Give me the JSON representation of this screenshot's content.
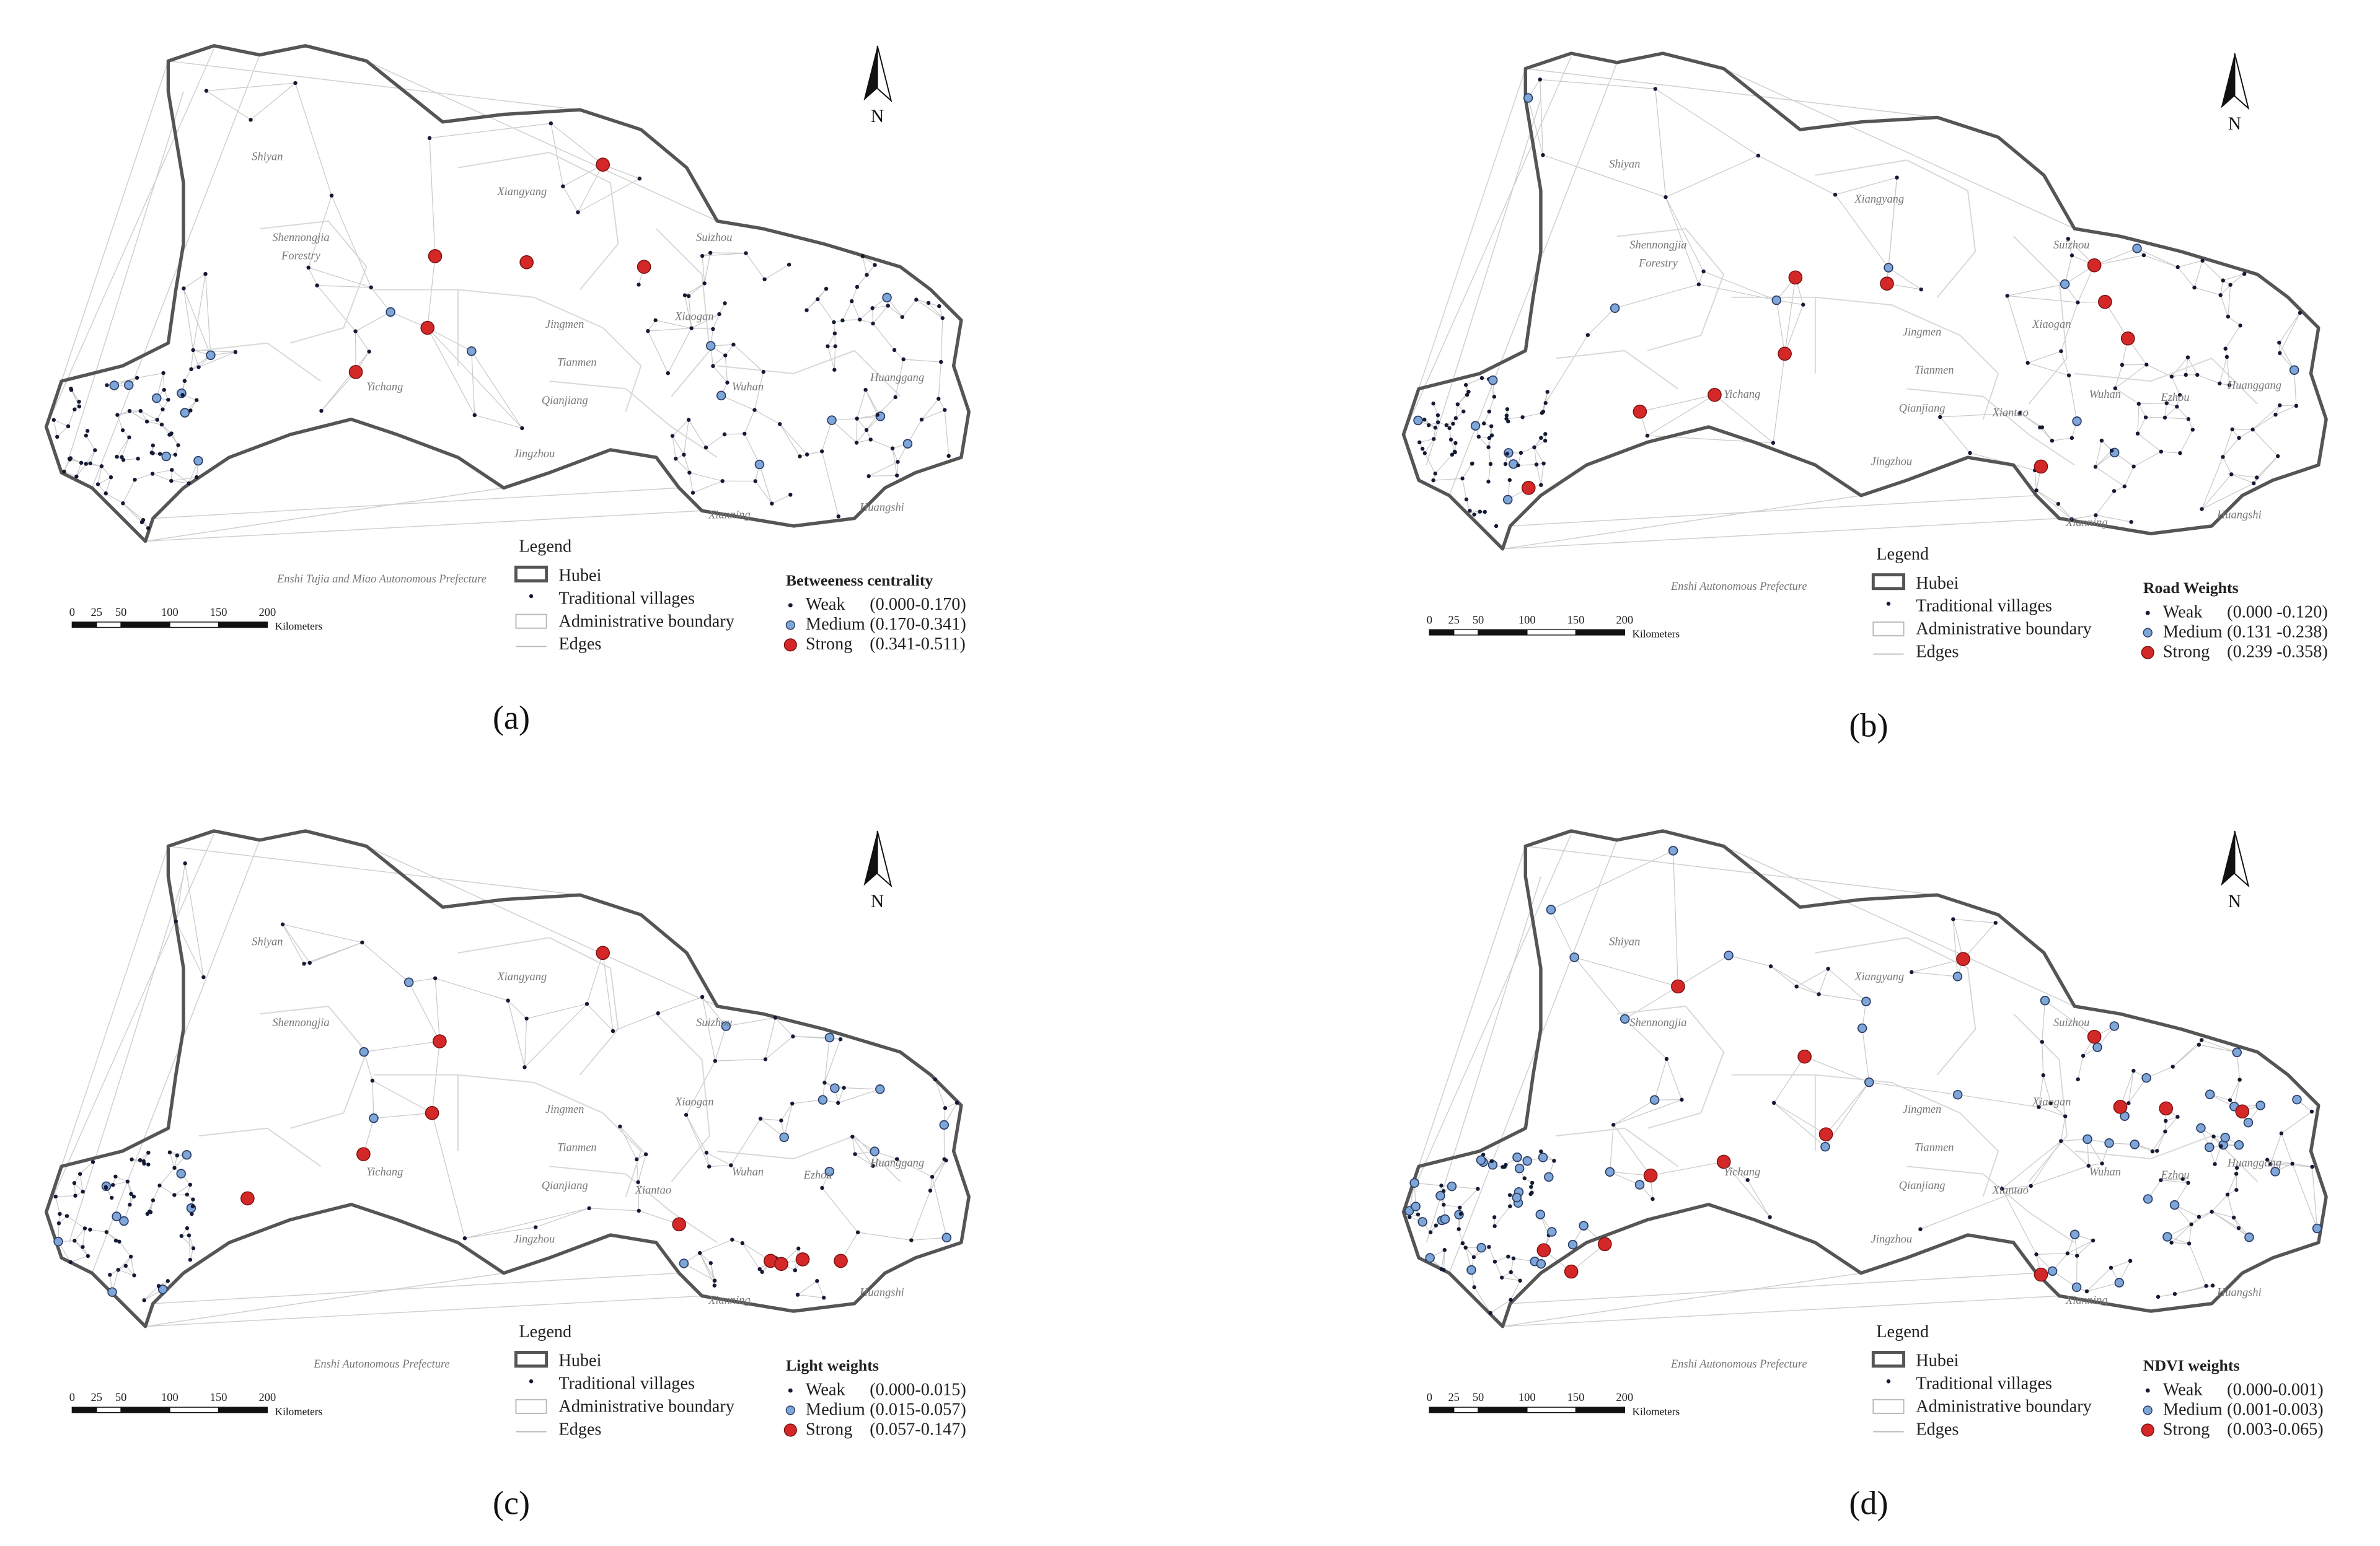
{
  "panels": [
    {
      "caption": "(a)",
      "north": "N",
      "places": [
        "Shiyan",
        "Shennongjia",
        "Forestry",
        "Xiangyang",
        "Suizhou",
        "Jingmen",
        "Tianmen",
        "Qianjiang",
        "Yichang",
        "Xiaogan",
        "Wuhan",
        "Huanggang",
        "Jingzhou",
        "Xianning",
        "Huangshi",
        "Enshi Tujia and Miao Autonomous Prefecture"
      ],
      "legend": {
        "title": "Legend",
        "items": [
          "Hubei",
          "Traditional villages",
          "Administrative boundary",
          "Edges"
        ],
        "class_title": "Betweeness centrality",
        "classes": [
          {
            "name": "Weak",
            "range": "(0.000-0.170)"
          },
          {
            "name": "Medium",
            "range": "(0.170-0.341)"
          },
          {
            "name": "Strong",
            "range": "(0.341-0.511)"
          }
        ]
      },
      "scale": {
        "ticks": [
          0,
          25,
          50,
          100,
          150,
          200
        ],
        "unit": "Kilometers"
      }
    },
    {
      "caption": "(b)",
      "north": "N",
      "places": [
        "Shiyan",
        "Shennongjia",
        "Forestry",
        "Xiangyang",
        "Suizhou",
        "Jingmen",
        "Tianmen",
        "Qianjiang",
        "Yichang",
        "Xiaogan",
        "Wuhan",
        "Huanggang",
        "Jingzhou",
        "Xianning",
        "Huangshi",
        "Enshi Autonomous Prefecture",
        "Xiantao",
        "Ezhou"
      ],
      "legend": {
        "title": "Legend",
        "items": [
          "Hubei",
          "Traditional villages",
          "Administrative boundary",
          "Edges"
        ],
        "class_title": "Road Weights",
        "classes": [
          {
            "name": "Weak",
            "range": "(0.000 -0.120)"
          },
          {
            "name": "Medium",
            "range": "(0.131 -0.238)"
          },
          {
            "name": "Strong",
            "range": "(0.239 -0.358)"
          }
        ]
      },
      "scale": {
        "ticks": [
          0,
          25,
          50,
          100,
          150,
          200
        ],
        "unit": "Kilometers"
      }
    },
    {
      "caption": "(c)",
      "north": "N",
      "places": [
        "Shiyan",
        "Shennongjia",
        "Xiangyang",
        "Suizhou",
        "Jingmen",
        "Tianmen",
        "Qianjiang",
        "Yichang",
        "Xiaogan",
        "Wuhan",
        "Huanggang",
        "Jingzhou",
        "Xianning",
        "Huangshi",
        "Enshi Autonomous Prefecture",
        "Xiantao",
        "Ezhou"
      ],
      "legend": {
        "title": "Legend",
        "items": [
          "Hubei",
          "Traditional villages",
          "Administrative boundary",
          "Edges"
        ],
        "class_title": "Light weights",
        "classes": [
          {
            "name": "Weak",
            "range": "(0.000-0.015)"
          },
          {
            "name": "Medium",
            "range": "(0.015-0.057)"
          },
          {
            "name": "Strong",
            "range": "(0.057-0.147)"
          }
        ]
      },
      "scale": {
        "ticks": [
          0,
          25,
          50,
          100,
          150,
          200
        ],
        "unit": "Kilometers"
      }
    },
    {
      "caption": "(d)",
      "north": "N",
      "places": [
        "Shiyan",
        "Shennongjia",
        "Xiangyang",
        "Suizhou",
        "Jingmen",
        "Tianmen",
        "Qianjiang",
        "Yichang",
        "Xiaogan",
        "Wuhan",
        "Huanggang",
        "Jingzhou",
        "Xianning",
        "Huangshi",
        "Enshi Autonomous Prefecture",
        "Xiantao",
        "Ezhou"
      ],
      "legend": {
        "title": "Legend",
        "items": [
          "Hubei",
          "Traditional villages",
          "Administrative boundary",
          "Edges"
        ],
        "class_title": "NDVI weights",
        "classes": [
          {
            "name": "Weak",
            "range": "(0.000-0.001)"
          },
          {
            "name": "Medium",
            "range": "(0.001-0.003)"
          },
          {
            "name": "Strong",
            "range": "(0.003-0.065)"
          }
        ]
      },
      "scale": {
        "ticks": [
          0,
          25,
          50,
          100,
          150,
          200
        ],
        "unit": "Kilometers"
      }
    }
  ]
}
